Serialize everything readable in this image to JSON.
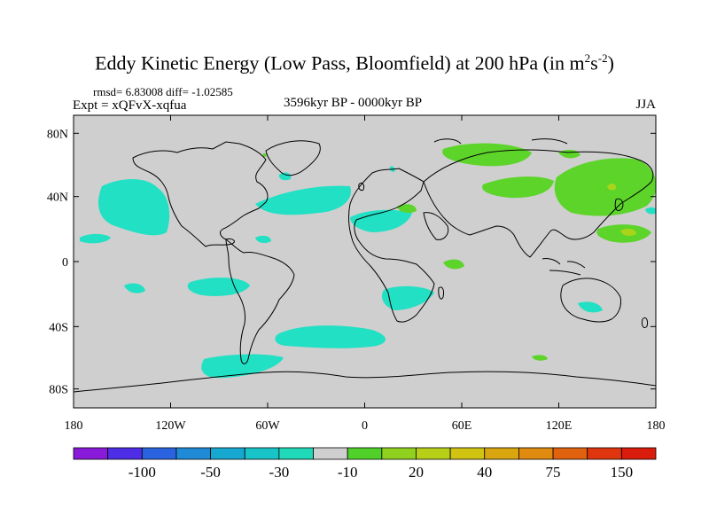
{
  "title": {
    "main": "Eddy Kinetic Energy (Low Pass, Bloomfield) at 200 hPa (in m",
    "sup1": "2",
    "mid": "s",
    "sup2": "-2",
    "end": ")"
  },
  "stats": "rmsd= 6.83008 diff= -1.02585",
  "expt": "Expt = xQFvX-xqfua",
  "period": "3596kyr BP - 0000kyr BP",
  "season": "JJA",
  "axes": {
    "lat_labels": [
      "80N",
      "40N",
      "0",
      "40S",
      "80S"
    ],
    "lat_values": [
      80,
      40,
      0,
      -40,
      -80
    ],
    "lon_labels": [
      "180",
      "120W",
      "60W",
      "0",
      "60E",
      "120E",
      "180"
    ],
    "lon_values": [
      -180,
      -120,
      -60,
      0,
      60,
      120,
      180
    ]
  },
  "colorbar": {
    "colors": [
      "#8a1ad9",
      "#4d2ee6",
      "#2a63e0",
      "#1f8ad6",
      "#17a8d1",
      "#19c4c9",
      "#1fd9b8",
      "#cfcfcf",
      "#4fd12a",
      "#8fd11e",
      "#b7cf17",
      "#d1c312",
      "#d9a610",
      "#e08a10",
      "#e0620f",
      "#e0360f",
      "#d91c0c"
    ],
    "labels": [
      "-100",
      "-50",
      "-30",
      "-10",
      "20",
      "40",
      "75",
      "150"
    ],
    "label_positions": [
      2,
      4,
      6,
      8,
      10,
      12,
      14,
      16
    ]
  },
  "colors": {
    "land_ocean": "#cfcfcf",
    "negative": "#22e0c4",
    "positive": "#5dd42a",
    "strong_positive": "#9fd11a"
  }
}
